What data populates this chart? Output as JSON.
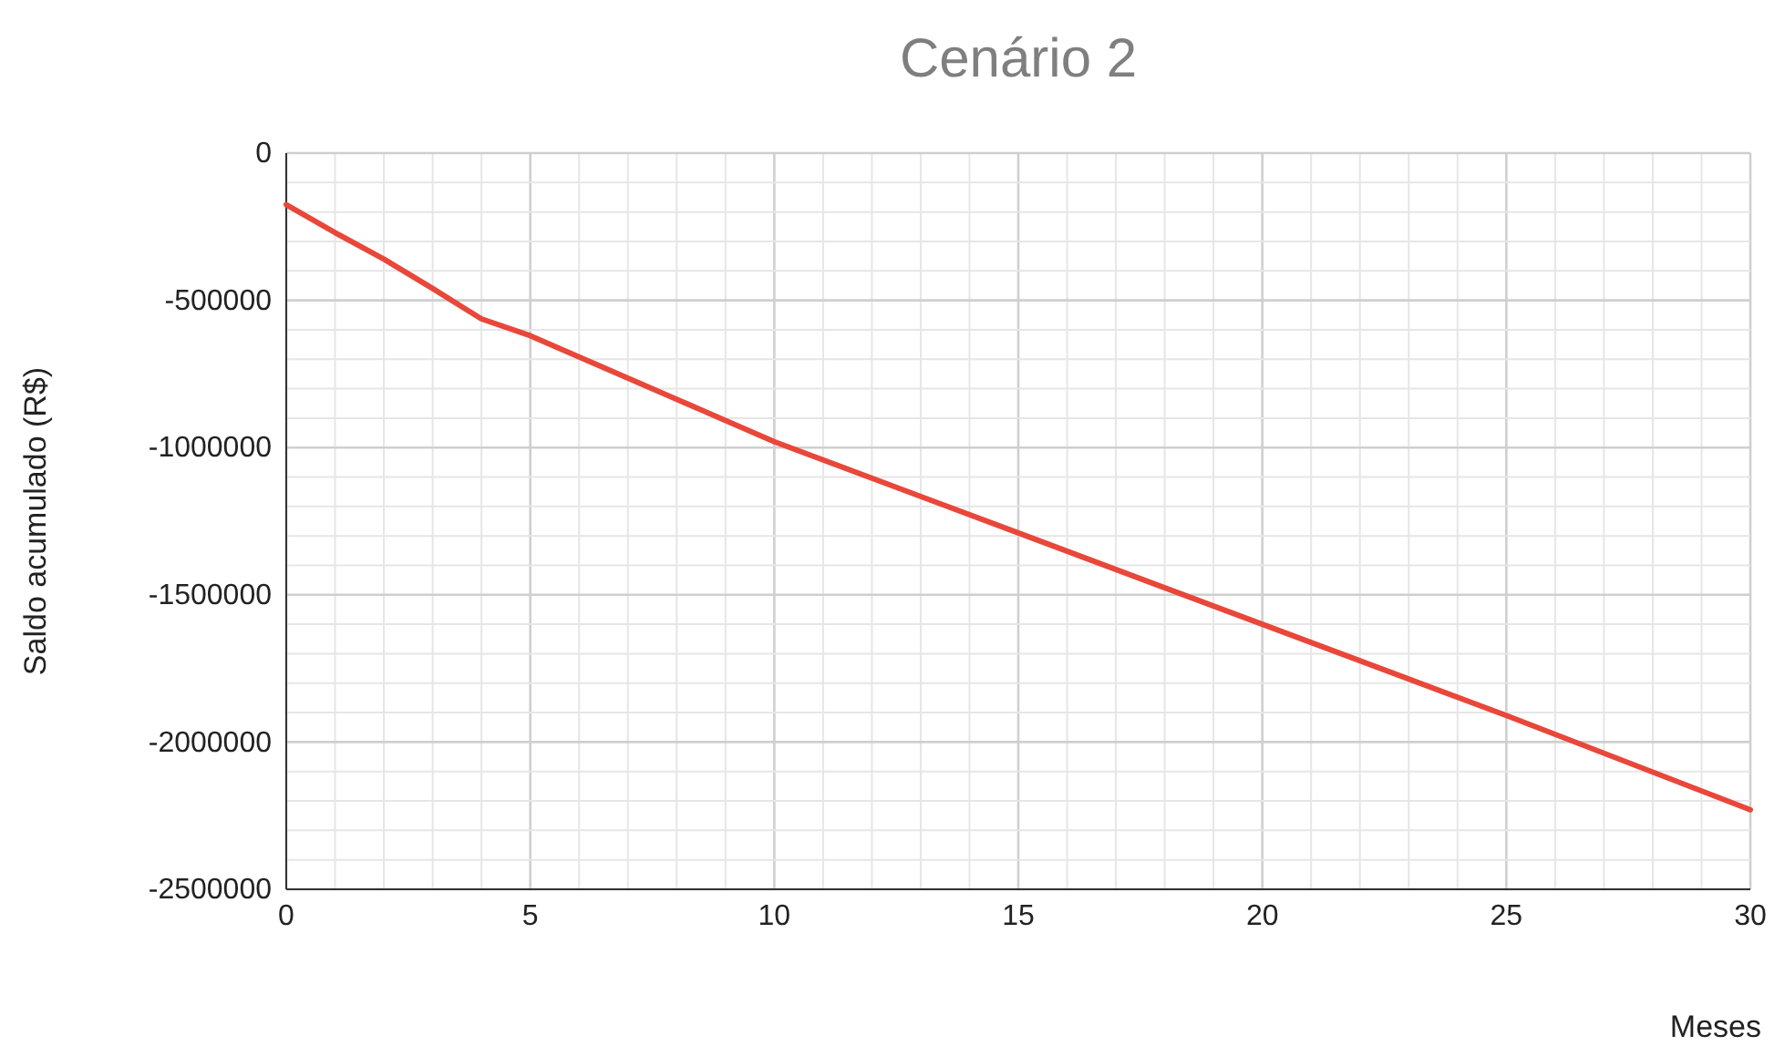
{
  "chart_data": {
    "type": "line",
    "title": "Cenário 2",
    "xlabel": "Meses",
    "ylabel": "Saldo acumulado (R$)",
    "x": [
      0,
      1,
      2,
      3,
      4,
      5,
      6,
      7,
      8,
      9,
      10,
      15,
      20,
      25,
      30
    ],
    "series": [
      {
        "color": "#e8473a",
        "values": [
          -175000,
          -270000,
          -360000,
          -460000,
          -563000,
          -620000,
          -692000,
          -764000,
          -836000,
          -908000,
          -980000,
          -1290000,
          -1600000,
          -1910000,
          -2230000
        ]
      }
    ],
    "xlim": [
      0,
      30
    ],
    "ylim": [
      -2500000,
      0
    ],
    "xticks": [
      0,
      {
        "value": 1,
        "label": null
      },
      {
        "value": 2,
        "label": null
      },
      {
        "value": 3,
        "label": null
      },
      {
        "value": 4,
        "label": null
      },
      5,
      {
        "value": 6,
        "label": null
      },
      {
        "value": 7,
        "label": null
      },
      {
        "value": 8,
        "label": null
      },
      {
        "value": 9,
        "label": null
      },
      10,
      {
        "value": 11,
        "label": null
      },
      {
        "value": 12,
        "label": null
      },
      {
        "value": 13,
        "label": null
      },
      {
        "value": 14,
        "label": null
      },
      15,
      {
        "value": 16,
        "label": null
      },
      {
        "value": 17,
        "label": null
      },
      {
        "value": 18,
        "label": null
      },
      {
        "value": 19,
        "label": null
      },
      20,
      {
        "value": 21,
        "label": null
      },
      {
        "value": 22,
        "label": null
      },
      {
        "value": 23,
        "label": null
      },
      {
        "value": 24,
        "label": null
      },
      25,
      {
        "value": 26,
        "label": null
      },
      {
        "value": 27,
        "label": null
      },
      {
        "value": 28,
        "label": null
      },
      {
        "value": 29,
        "label": null
      },
      30
    ],
    "yticks": [
      -2500000,
      {
        "value": -2400000,
        "label": null
      },
      {
        "value": -2300000,
        "label": null
      },
      {
        "value": -2200000,
        "label": null
      },
      {
        "value": -2100000,
        "label": null
      },
      -2000000,
      {
        "value": -1900000,
        "label": null
      },
      {
        "value": -1800000,
        "label": null
      },
      {
        "value": -1700000,
        "label": null
      },
      {
        "value": -1600000,
        "label": null
      },
      -1500000,
      {
        "value": -1400000,
        "label": null
      },
      {
        "value": -1300000,
        "label": null
      },
      {
        "value": -1200000,
        "label": null
      },
      {
        "value": -1100000,
        "label": null
      },
      -1000000,
      {
        "value": -900000,
        "label": null
      },
      {
        "value": -800000,
        "label": null
      },
      {
        "value": -700000,
        "label": null
      },
      {
        "value": -600000,
        "label": null
      },
      -500000,
      {
        "value": -400000,
        "label": null
      },
      {
        "value": -300000,
        "label": null
      },
      {
        "value": -200000,
        "label": null
      },
      {
        "value": -100000,
        "label": null
      },
      0
    ],
    "grid": true,
    "marker": "none",
    "line_style": "solid"
  }
}
